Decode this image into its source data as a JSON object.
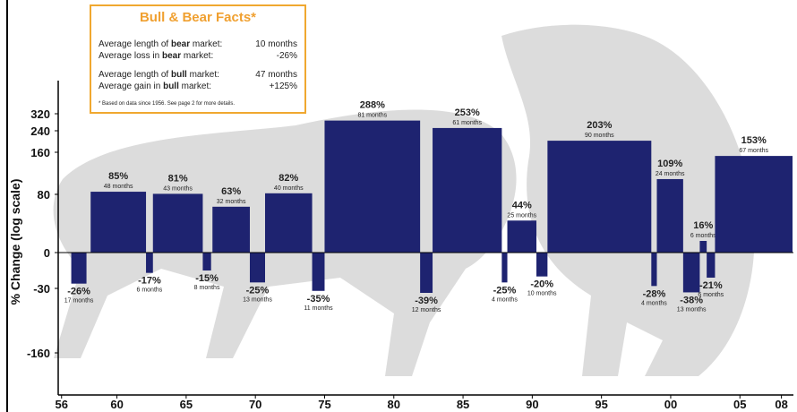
{
  "chart_data": {
    "type": "range-bar",
    "ylabel": "% Change (log scale)",
    "color": "#1e2370",
    "x_start": [
      1956.7,
      1958.1,
      1962.1,
      1962.6,
      1966.2,
      1966.9,
      1969.6,
      1970.7,
      1974.1,
      1975.0,
      1981.9,
      1982.8,
      1987.8,
      1988.2,
      1990.3,
      1991.1,
      1998.6,
      1999.0,
      2000.9,
      2002.1,
      2002.6,
      2003.2
    ],
    "x_end": [
      1957.8,
      1962.1,
      1962.6,
      1966.2,
      1966.8,
      1969.6,
      1970.7,
      1974.1,
      1975.0,
      1981.9,
      1982.8,
      1987.8,
      1988.2,
      1990.3,
      1991.1,
      1998.6,
      1999.0,
      2000.9,
      2002.1,
      2002.6,
      2003.2,
      2008.8
    ],
    "values": [
      -26,
      85,
      -17,
      81,
      -15,
      63,
      -25,
      82,
      -35,
      288,
      -39,
      253,
      -25,
      44,
      -20,
      203,
      -28,
      109,
      -38,
      16,
      -21,
      153
    ],
    "value_labels": [
      "-26%",
      "85%",
      "-17%",
      "81%",
      "-15%",
      "63%",
      "-25%",
      "82%",
      "-35%",
      "288%",
      "-39%",
      "253%",
      "-25%",
      "44%",
      "-20%",
      "203%",
      "-28%",
      "109%",
      "-38%",
      "16%",
      "-21%",
      "153%"
    ],
    "durations": [
      "17 months",
      "48 months",
      "6 months",
      "43 months",
      "8 months",
      "32 months",
      "13 months",
      "40 months",
      "11 months",
      "81 months",
      "12 months",
      "61 months",
      "4 months",
      "25 months",
      "10 months",
      "90 months",
      "4 months",
      "24 months",
      "13 months",
      "6 months",
      "6 months",
      "67 months"
    ],
    "xlim": [
      1952.2,
      2008.8
    ],
    "xticks": [
      {
        "value": 1956,
        "label": "56"
      },
      {
        "value": 1960,
        "label": "60"
      },
      {
        "value": 1965,
        "label": "65"
      },
      {
        "value": 1970,
        "label": "70"
      },
      {
        "value": 1975,
        "label": "75"
      },
      {
        "value": 1980,
        "label": "80"
      },
      {
        "value": 1985,
        "label": "85"
      },
      {
        "value": 1990,
        "label": "90"
      },
      {
        "value": 1995,
        "label": "95"
      },
      {
        "value": 2000,
        "label": "00"
      },
      {
        "value": 2005,
        "label": "05"
      },
      {
        "value": 2008,
        "label": "08"
      }
    ],
    "ylim": [
      -240,
      480
    ],
    "yticks": [
      320,
      240,
      160,
      80,
      0,
      -30,
      -160
    ],
    "facts": {
      "title": "Bull & Bear Facts*",
      "rows": [
        {
          "pre": "Average length of",
          "bold": "bear",
          "post": "market:",
          "value": "10 months"
        },
        {
          "pre": "Average loss in",
          "bold": "bear",
          "post": "market:",
          "value": "-26%"
        },
        {
          "pre": "Average length of",
          "bold": "bull",
          "post": "market:",
          "value": "47 months"
        },
        {
          "pre": "Average gain in",
          "bold": "bull",
          "post": "market:",
          "value": "+125%"
        }
      ],
      "footnote": "* Based on data since 1956. See page 2 for more details."
    }
  }
}
